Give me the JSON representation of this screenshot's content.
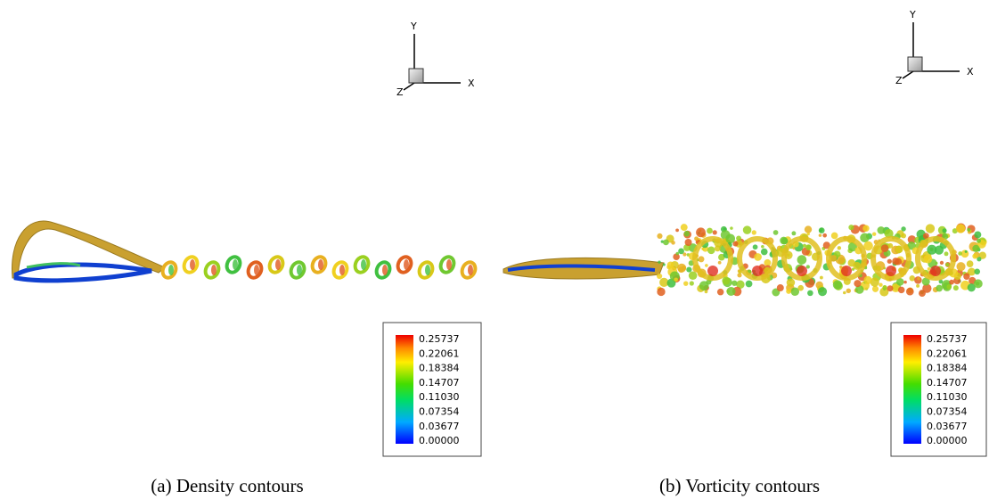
{
  "panels": [
    {
      "caption": "(a) Density contours",
      "axes": {
        "y": "Y",
        "x": "X",
        "z": "Z"
      },
      "colorbar": [
        "0.25737",
        "0.22061",
        "0.18384",
        "0.14707",
        "0.11030",
        "0.07354",
        "0.03677",
        "0.00000"
      ]
    },
    {
      "caption": "(b) Vorticity contours",
      "axes": {
        "y": "Y",
        "x": "X",
        "z": "Z"
      },
      "colorbar": [
        "0.25737",
        "0.22061",
        "0.18384",
        "0.14707",
        "0.11030",
        "0.07354",
        "0.03677",
        "0.00000"
      ]
    }
  ]
}
